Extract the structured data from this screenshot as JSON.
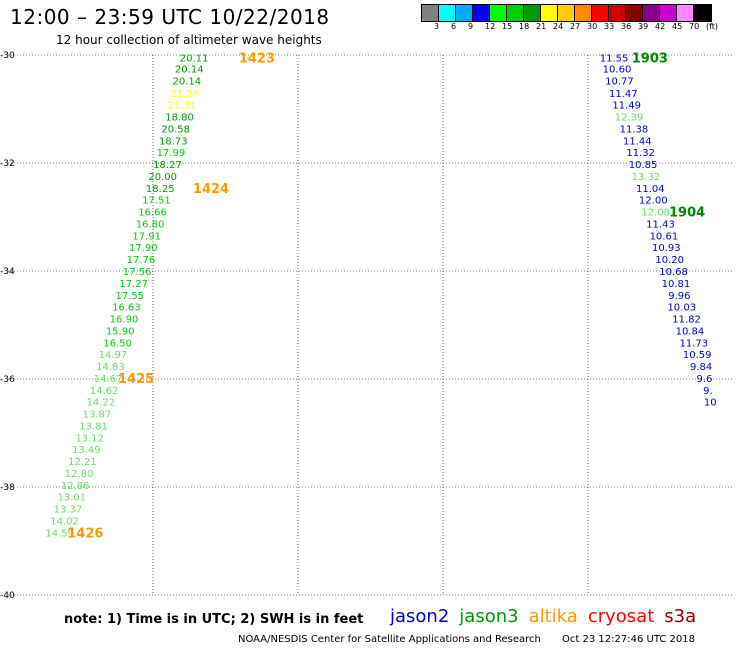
{
  "header": {
    "title": "12:00 – 23:59 UTC 10/22/2018",
    "subtitle": "12 hour collection of altimeter wave heights"
  },
  "colorbar": {
    "colors": [
      "#808080",
      "#00ffff",
      "#00aaff",
      "#0000ff",
      "#00ff00",
      "#00cc00",
      "#009900",
      "#ffff00",
      "#ffcc00",
      "#ff8800",
      "#ff0000",
      "#cc0000",
      "#880000",
      "#880088",
      "#cc00cc",
      "#ff88ff",
      "#000000"
    ],
    "labels": [
      "3",
      "6",
      "9",
      "12",
      "15",
      "18",
      "21",
      "24",
      "27",
      "30",
      "33",
      "36",
      "39",
      "42",
      "45",
      "70",
      "(ft)"
    ]
  },
  "chart_data": {
    "type": "scatter",
    "xlim": [
      45,
      60
    ],
    "ylim": [
      -40,
      -30
    ],
    "x_ticks": [
      "45",
      "48",
      "51",
      "54",
      "57",
      "60"
    ],
    "y_ticks": [
      "-30",
      "-32",
      "-34",
      "-36",
      "-38",
      "-40"
    ],
    "series": [
      {
        "name": "jason3",
        "color": "#009900",
        "points": [
          {
            "lon": 48.85,
            "lat": -30.05,
            "v": "20.11",
            "c": "#009900"
          },
          {
            "lon": 48.75,
            "lat": -30.25,
            "v": "20.14",
            "c": "#009900"
          },
          {
            "lon": 48.7,
            "lat": -30.47,
            "v": "20.14",
            "c": "#009900"
          },
          {
            "lon": 48.65,
            "lat": -30.7,
            "v": "21.27",
            "c": "#ffff00"
          },
          {
            "lon": 48.6,
            "lat": -30.92,
            "v": "21.31",
            "c": "#ffff00"
          },
          {
            "lon": 48.55,
            "lat": -31.14,
            "v": "18.80",
            "c": "#009900"
          },
          {
            "lon": 48.47,
            "lat": -31.36,
            "v": "20.58",
            "c": "#009900"
          },
          {
            "lon": 48.42,
            "lat": -31.58,
            "v": "18.73",
            "c": "#009900"
          },
          {
            "lon": 48.37,
            "lat": -31.8,
            "v": "17.99",
            "c": "#00cc00"
          },
          {
            "lon": 48.3,
            "lat": -32.02,
            "v": "18.27",
            "c": "#009900"
          },
          {
            "lon": 48.2,
            "lat": -32.24,
            "v": "20.00",
            "c": "#009900"
          },
          {
            "lon": 48.15,
            "lat": -32.46,
            "v": "18.25",
            "c": "#009900"
          },
          {
            "lon": 48.07,
            "lat": -32.68,
            "v": "17.51",
            "c": "#00cc00"
          },
          {
            "lon": 47.99,
            "lat": -32.9,
            "v": "16.66",
            "c": "#00cc00"
          },
          {
            "lon": 47.94,
            "lat": -33.12,
            "v": "16.80",
            "c": "#00cc00"
          },
          {
            "lon": 47.87,
            "lat": -33.34,
            "v": "17.91",
            "c": "#00cc00"
          },
          {
            "lon": 47.8,
            "lat": -33.56,
            "v": "17.90",
            "c": "#00cc00"
          },
          {
            "lon": 47.75,
            "lat": -33.78,
            "v": "17.76",
            "c": "#00cc00"
          },
          {
            "lon": 47.67,
            "lat": -34.0,
            "v": "17.56",
            "c": "#00cc00"
          },
          {
            "lon": 47.6,
            "lat": -34.22,
            "v": "17.27",
            "c": "#00cc00"
          },
          {
            "lon": 47.52,
            "lat": -34.44,
            "v": "17.55",
            "c": "#00cc00"
          },
          {
            "lon": 47.45,
            "lat": -34.66,
            "v": "16.63",
            "c": "#00cc00"
          },
          {
            "lon": 47.4,
            "lat": -34.88,
            "v": "16.90",
            "c": "#00cc00"
          },
          {
            "lon": 47.32,
            "lat": -35.1,
            "v": "15.90",
            "c": "#00cc00"
          },
          {
            "lon": 47.27,
            "lat": -35.32,
            "v": "16.50",
            "c": "#00cc00"
          },
          {
            "lon": 47.17,
            "lat": -35.54,
            "v": "14.97",
            "c": "#66dd66"
          },
          {
            "lon": 47.12,
            "lat": -35.76,
            "v": "14.83",
            "c": "#66dd66"
          },
          {
            "lon": 47.07,
            "lat": -35.98,
            "v": "14.67",
            "c": "#66dd66"
          },
          {
            "lon": 46.99,
            "lat": -36.2,
            "v": "14.62",
            "c": "#66dd66"
          },
          {
            "lon": 46.92,
            "lat": -36.42,
            "v": "14.22",
            "c": "#66dd66"
          },
          {
            "lon": 46.84,
            "lat": -36.64,
            "v": "13.87",
            "c": "#66dd66"
          },
          {
            "lon": 46.77,
            "lat": -36.86,
            "v": "13.81",
            "c": "#66dd66"
          },
          {
            "lon": 46.69,
            "lat": -37.08,
            "v": "13.12",
            "c": "#66dd66"
          },
          {
            "lon": 46.62,
            "lat": -37.3,
            "v": "13.49",
            "c": "#66dd66"
          },
          {
            "lon": 46.54,
            "lat": -37.52,
            "v": "12.21",
            "c": "#66dd66"
          },
          {
            "lon": 46.47,
            "lat": -37.74,
            "v": "12.80",
            "c": "#66dd66"
          },
          {
            "lon": 46.39,
            "lat": -37.96,
            "v": "12.86",
            "c": "#66dd66"
          },
          {
            "lon": 46.32,
            "lat": -38.18,
            "v": "13.01",
            "c": "#66dd66"
          },
          {
            "lon": 46.24,
            "lat": -38.4,
            "v": "13.37",
            "c": "#66dd66"
          },
          {
            "lon": 46.17,
            "lat": -38.62,
            "v": "14.02",
            "c": "#66dd66"
          },
          {
            "lon": 46.07,
            "lat": -38.84,
            "v": "14.59",
            "c": "#66dd66"
          }
        ]
      },
      {
        "name": "jason2",
        "color": "#0000cc",
        "points": [
          {
            "lon": 57.54,
            "lat": -30.05,
            "v": "11.55",
            "c": "#0000cc"
          },
          {
            "lon": 57.6,
            "lat": -30.25,
            "v": "10.60",
            "c": "#0000cc"
          },
          {
            "lon": 57.65,
            "lat": -30.47,
            "v": "10.77",
            "c": "#0000cc"
          },
          {
            "lon": 57.73,
            "lat": -30.7,
            "v": "11.47",
            "c": "#0000cc"
          },
          {
            "lon": 57.8,
            "lat": -30.92,
            "v": "11.49",
            "c": "#0000cc"
          },
          {
            "lon": 57.85,
            "lat": -31.14,
            "v": "12.39",
            "c": "#66dd66"
          },
          {
            "lon": 57.95,
            "lat": -31.36,
            "v": "11.38",
            "c": "#0000cc"
          },
          {
            "lon": 58.02,
            "lat": -31.58,
            "v": "11.44",
            "c": "#0000cc"
          },
          {
            "lon": 58.09,
            "lat": -31.8,
            "v": "11.32",
            "c": "#0000cc"
          },
          {
            "lon": 58.14,
            "lat": -32.02,
            "v": "10.85",
            "c": "#0000cc"
          },
          {
            "lon": 58.2,
            "lat": -32.24,
            "v": "13.32",
            "c": "#66dd66"
          },
          {
            "lon": 58.29,
            "lat": -32.46,
            "v": "11.04",
            "c": "#0000cc"
          },
          {
            "lon": 58.35,
            "lat": -32.68,
            "v": "12.00",
            "c": "#0000cc"
          },
          {
            "lon": 58.4,
            "lat": -32.9,
            "v": "12.08",
            "c": "#66dd66"
          },
          {
            "lon": 58.5,
            "lat": -33.12,
            "v": "11.43",
            "c": "#0000cc"
          },
          {
            "lon": 58.57,
            "lat": -33.34,
            "v": "10.61",
            "c": "#0000cc"
          },
          {
            "lon": 58.62,
            "lat": -33.56,
            "v": "10.93",
            "c": "#0000cc"
          },
          {
            "lon": 58.69,
            "lat": -33.78,
            "v": "10.20",
            "c": "#0000cc"
          },
          {
            "lon": 58.77,
            "lat": -34.0,
            "v": "10.68",
            "c": "#0000cc"
          },
          {
            "lon": 58.82,
            "lat": -34.22,
            "v": "10.81",
            "c": "#0000cc"
          },
          {
            "lon": 58.89,
            "lat": -34.44,
            "v": "9.96",
            "c": "#0000cc"
          },
          {
            "lon": 58.94,
            "lat": -34.66,
            "v": "10.03",
            "c": "#0000cc"
          },
          {
            "lon": 59.04,
            "lat": -34.88,
            "v": "11.82",
            "c": "#0000cc"
          },
          {
            "lon": 59.11,
            "lat": -35.1,
            "v": "10.84",
            "c": "#0000cc"
          },
          {
            "lon": 59.19,
            "lat": -35.32,
            "v": "11.73",
            "c": "#0000cc"
          },
          {
            "lon": 59.26,
            "lat": -35.54,
            "v": "10.59",
            "c": "#0000cc"
          },
          {
            "lon": 59.34,
            "lat": -35.76,
            "v": "9.84",
            "c": "#0000cc"
          },
          {
            "lon": 59.41,
            "lat": -35.98,
            "v": "9.6",
            "c": "#0000cc"
          },
          {
            "lon": 59.48,
            "lat": -36.2,
            "v": "9.",
            "c": "#0000cc"
          },
          {
            "lon": 59.53,
            "lat": -36.42,
            "v": "10",
            "c": "#0000cc"
          }
        ]
      }
    ],
    "time_labels": [
      {
        "lon": 50.15,
        "lat": -30.05,
        "t": "1423",
        "c": "#ff9900"
      },
      {
        "lon": 49.2,
        "lat": -32.46,
        "t": "1424",
        "c": "#ff9900"
      },
      {
        "lon": 47.65,
        "lat": -35.98,
        "t": "1425",
        "c": "#ff9900"
      },
      {
        "lon": 46.6,
        "lat": -38.84,
        "t": "1426",
        "c": "#ff9900"
      },
      {
        "lon": 58.28,
        "lat": -30.05,
        "t": "1903",
        "c": "#008800"
      },
      {
        "lon": 59.05,
        "lat": -32.9,
        "t": "1904",
        "c": "#008800"
      }
    ]
  },
  "footer": {
    "note": "note:  1) Time is in UTC;  2) SWH is in feet",
    "legend": [
      {
        "name": "jason2",
        "color": "#0000cc"
      },
      {
        "name": "jason3",
        "color": "#009900"
      },
      {
        "name": "altika",
        "color": "#ff9900"
      },
      {
        "name": "cryosat",
        "color": "#ff0000"
      },
      {
        "name": "s3a",
        "color": "#990000"
      }
    ],
    "credit": "NOAA/NESDIS Center for Satellite Applications and Research",
    "timestamp": "Oct 23 12:27:46 UTC 2018"
  }
}
